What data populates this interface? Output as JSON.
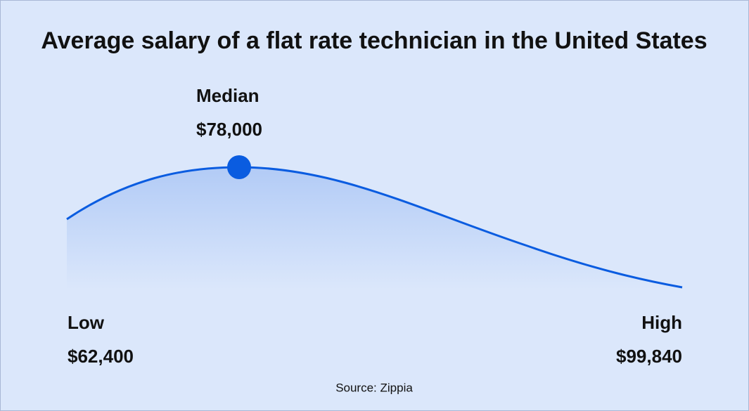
{
  "title": "Average salary of a flat rate technician in the United States",
  "median": {
    "label": "Median",
    "value": "$78,000"
  },
  "low": {
    "label": "Low",
    "value": "$62,400"
  },
  "high": {
    "label": "High",
    "value": "$99,840"
  },
  "source": "Source: Zippia"
}
